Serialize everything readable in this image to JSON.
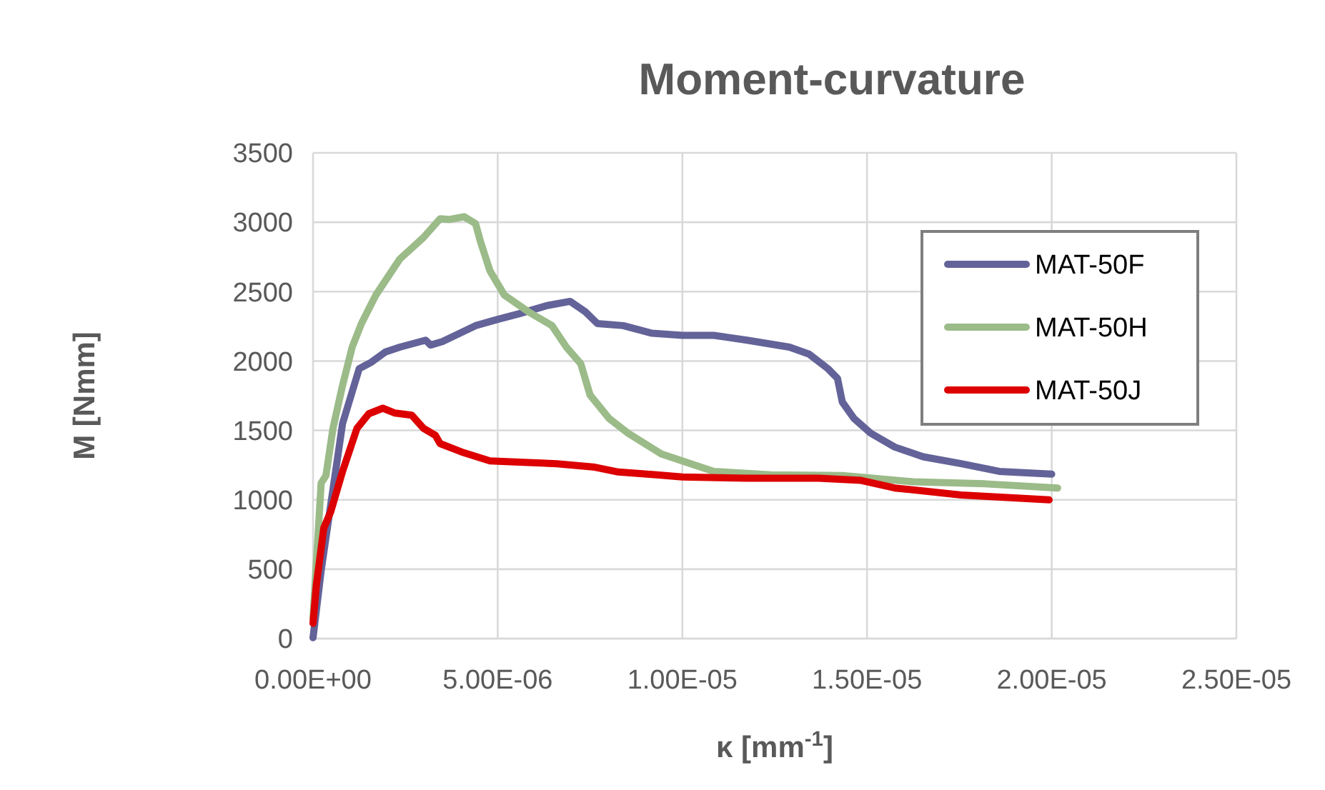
{
  "chart_data": {
    "type": "line",
    "title": "Moment-curvature",
    "xlabel": "κ [mm$^{-1}$]",
    "ylabel": "M [Nmm]",
    "xlim": [
      0,
      2.5e-05
    ],
    "xticks": [
      {
        "value": 0,
        "label": "0.00E+00"
      },
      {
        "value": 5e-06,
        "label": "5.00E-06"
      },
      {
        "value": 1e-05,
        "label": "1.00E-05"
      },
      {
        "value": 1.5e-05,
        "label": "1.50E-05"
      },
      {
        "value": 2e-05,
        "label": "2.00E-05"
      },
      {
        "value": 2.5e-05,
        "label": "2.50E-05"
      }
    ],
    "ylim": [
      0,
      3500
    ],
    "yticks": [
      0,
      500,
      1000,
      1500,
      2000,
      2500,
      3000,
      3500
    ],
    "grid": true,
    "legend": "top right",
    "line_style": "solid",
    "series": [
      {
        "name": "MAT-50F",
        "color": "#636399",
        "x": [
          0,
          2.2e-07,
          8e-07,
          1.25e-06,
          1.57e-06,
          1.96e-06,
          2.35e-06,
          3.05e-06,
          3.18e-06,
          3.5e-06,
          4.4e-06,
          5e-06,
          5.57e-06,
          6.34e-06,
          6.96e-06,
          7.37e-06,
          7.7e-06,
          8.4e-06,
          9.18e-06,
          1e-05,
          1.085e-05,
          1.175e-05,
          1.29e-05,
          1.343e-05,
          1.394e-05,
          1.42e-05,
          1.433e-05,
          1.465e-05,
          1.51e-05,
          1.575e-05,
          1.652e-05,
          1.755e-05,
          1.858e-05,
          2e-05
        ],
        "values": [
          6,
          490,
          1550,
          1945,
          1990,
          2065,
          2100,
          2150,
          2115,
          2140,
          2255,
          2300,
          2340,
          2400,
          2430,
          2355,
          2270,
          2255,
          2200,
          2185,
          2185,
          2150,
          2100,
          2050,
          1945,
          1875,
          1705,
          1585,
          1480,
          1380,
          1310,
          1260,
          1205,
          1185
        ]
      },
      {
        "name": "MAT-50H",
        "color": "#9bbb89",
        "x": [
          0,
          2.2e-07,
          3.5e-07,
          5.4e-07,
          8e-07,
          1.06e-06,
          1.31e-06,
          1.7e-06,
          2.35e-06,
          2.99e-06,
          3.44e-06,
          3.7e-06,
          4.09e-06,
          4.4e-06,
          4.54e-06,
          4.79e-06,
          5.18e-06,
          5.83e-06,
          6.47e-06,
          6.86e-06,
          7.25e-06,
          7.5e-06,
          8.02e-06,
          8.53e-06,
          9.43e-06,
          1.085e-05,
          1.24e-05,
          1.433e-05,
          1.626e-05,
          1.82e-05,
          2.016e-05
        ],
        "values": [
          145,
          1120,
          1175,
          1515,
          1825,
          2100,
          2270,
          2475,
          2735,
          2890,
          3025,
          3020,
          3040,
          2990,
          2855,
          2650,
          2475,
          2355,
          2255,
          2100,
          1980,
          1755,
          1585,
          1480,
          1330,
          1205,
          1180,
          1175,
          1130,
          1115,
          1085
        ]
      },
      {
        "name": "MAT-50J",
        "color": "#dd0000",
        "x": [
          0,
          9e-08,
          2.9e-07,
          4.8e-07,
          8e-07,
          1.19e-06,
          1.51e-06,
          1.89e-06,
          2.22e-06,
          2.67e-06,
          2.99e-06,
          3.31e-06,
          3.44e-06,
          4.02e-06,
          4.79e-06,
          5.7e-06,
          6.6e-06,
          7.63e-06,
          8.27e-06,
          9.3e-06,
          1e-05,
          1.175e-05,
          1.368e-05,
          1.484e-05,
          1.575e-05,
          1.755e-05,
          1.993e-05
        ],
        "values": [
          110,
          385,
          795,
          915,
          1205,
          1515,
          1620,
          1660,
          1625,
          1610,
          1515,
          1465,
          1405,
          1345,
          1280,
          1270,
          1260,
          1235,
          1200,
          1180,
          1165,
          1155,
          1155,
          1140,
          1085,
          1035,
          1000
        ]
      }
    ]
  }
}
